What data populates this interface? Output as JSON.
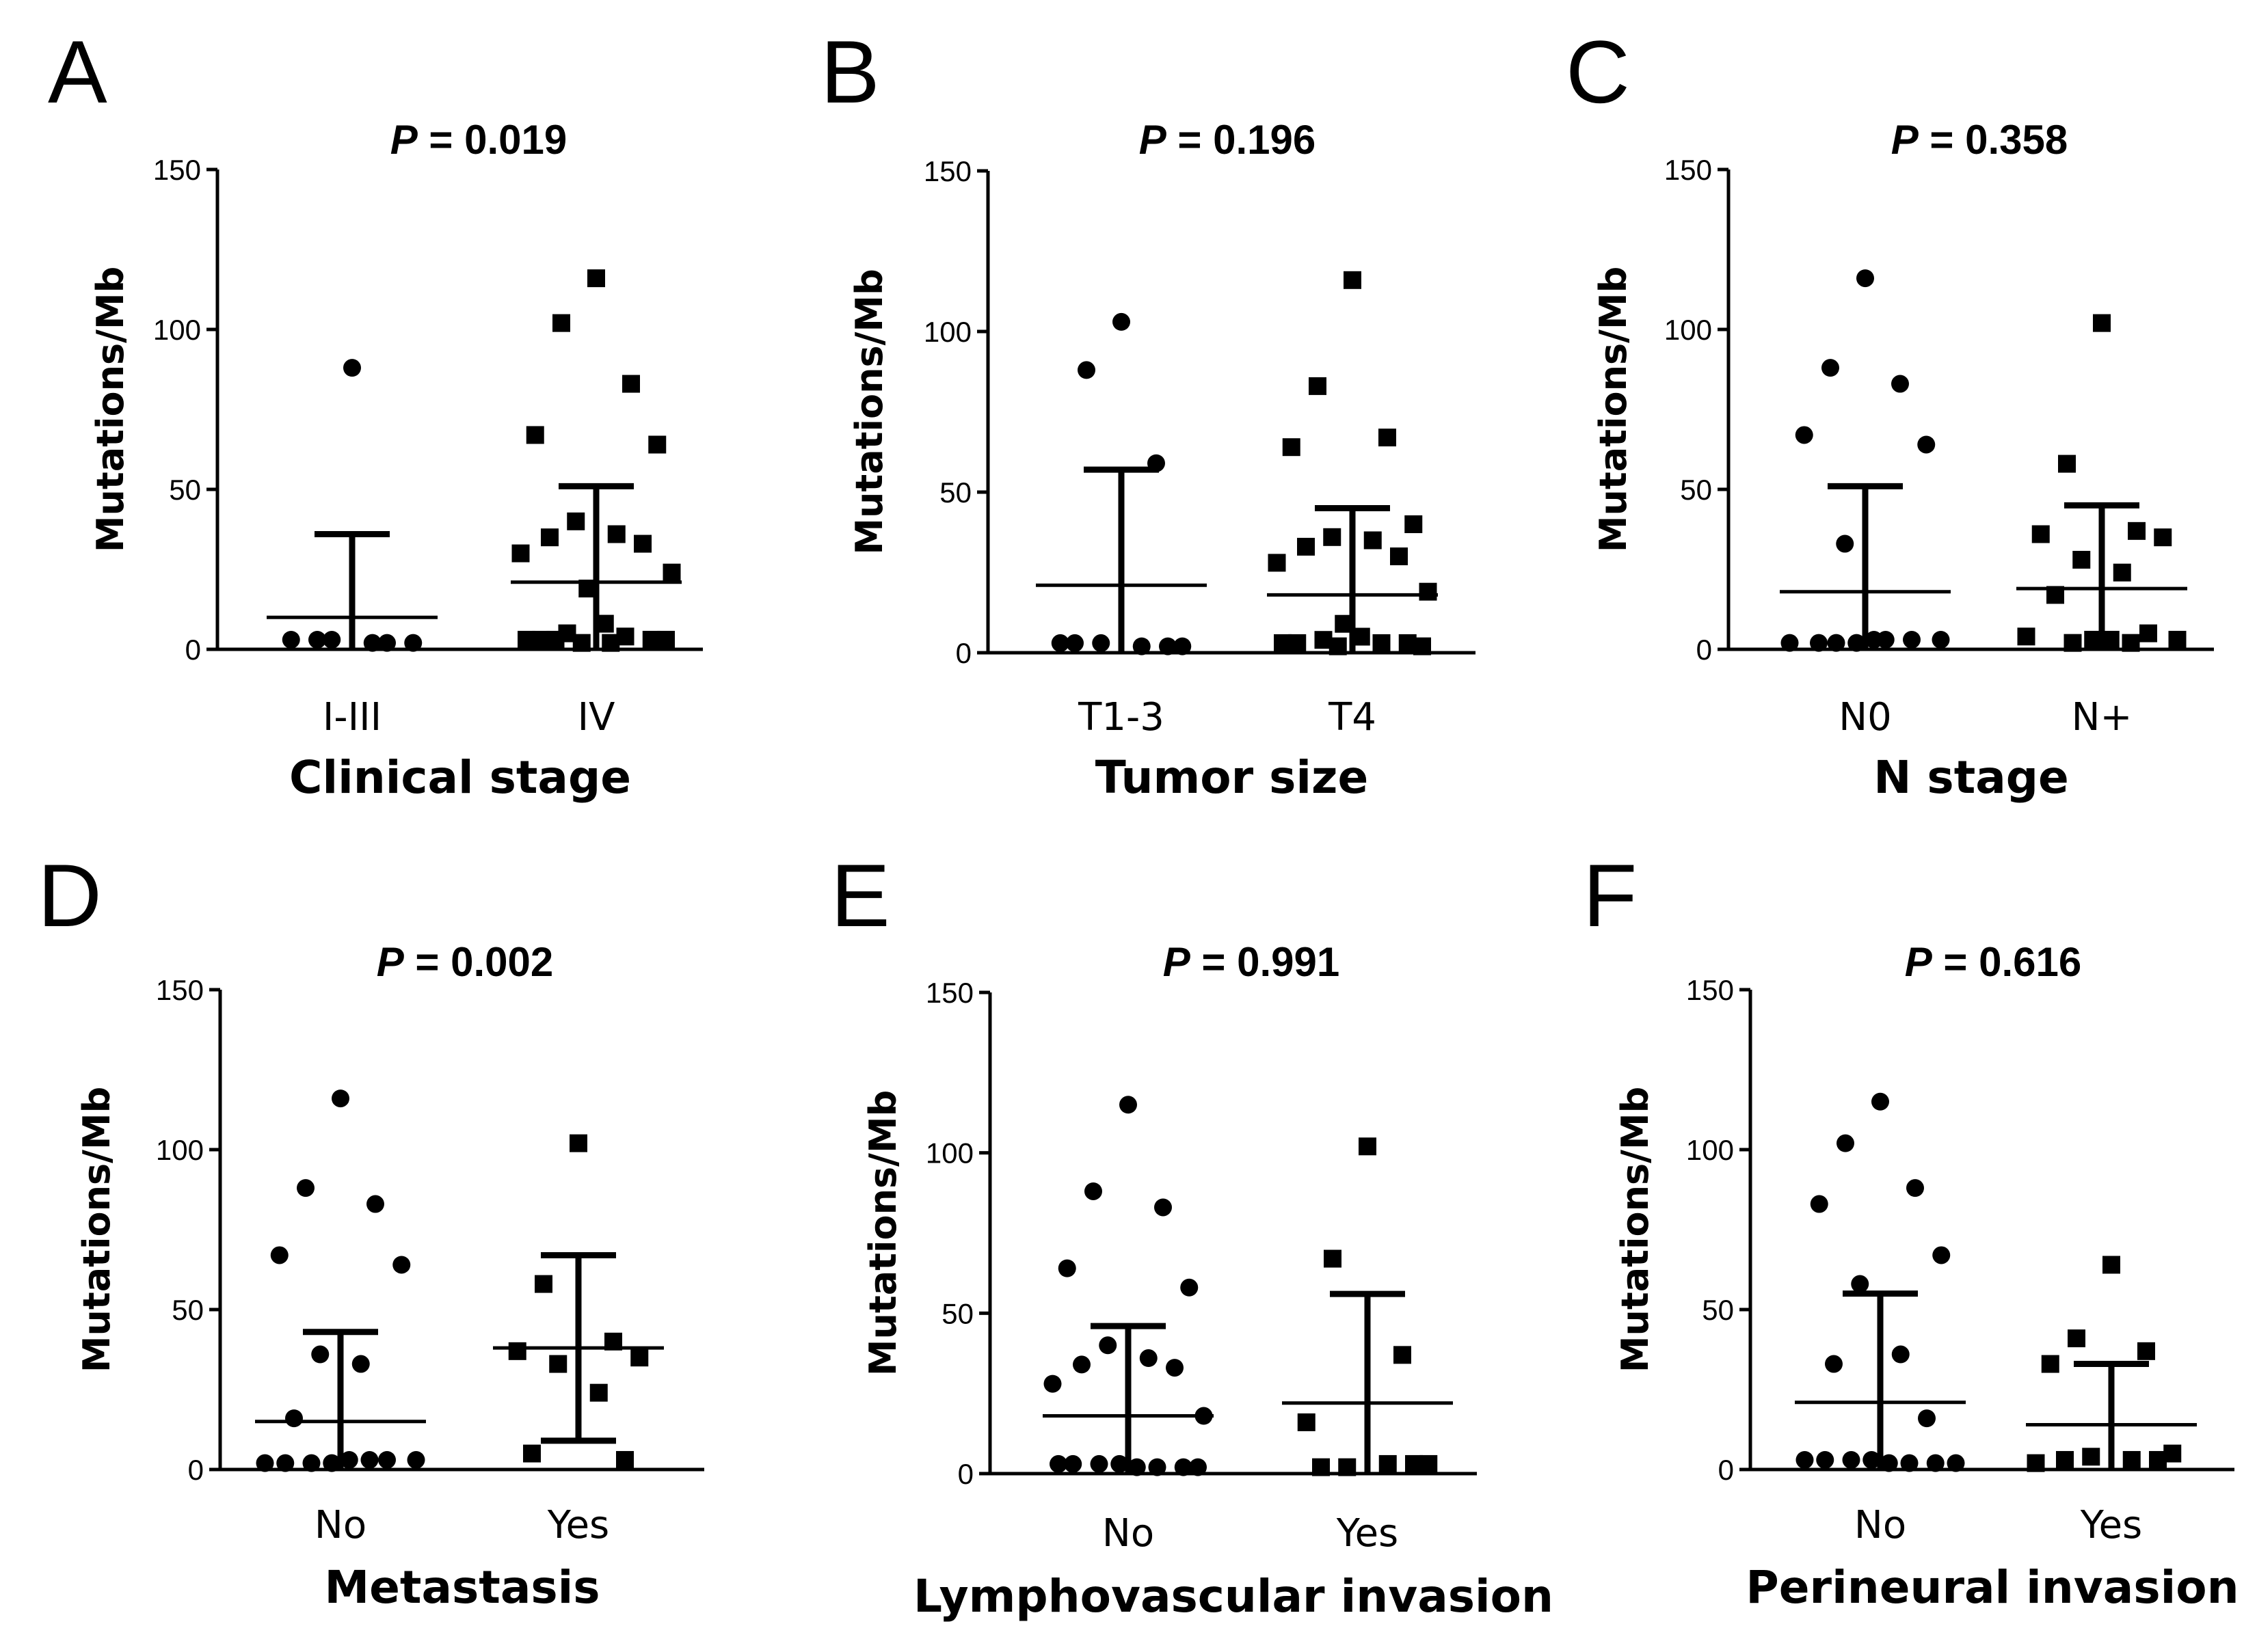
{
  "chart_data": [
    {
      "type": "scatter",
      "panel": "A",
      "title_p": "P",
      "title_rest": " = 0.019",
      "ylabel": "Mutations/Mb",
      "xlabel": "Clinical stage",
      "categories": [
        "I-III",
        "IV"
      ],
      "ylim": [
        0,
        150
      ],
      "yticks": [
        0,
        50,
        100,
        150
      ],
      "series": [
        {
          "name": "I-III",
          "marker": "circle",
          "mean": 10,
          "sd_upper": 36,
          "sd_lower": 0,
          "values": [
            88,
            3,
            2,
            3,
            2,
            3,
            2
          ]
        },
        {
          "name": "IV",
          "marker": "square",
          "mean": 21,
          "sd_upper": 51,
          "sd_lower": 0,
          "values": [
            116,
            102,
            83,
            67,
            64,
            40,
            36,
            35,
            33,
            30,
            24,
            19,
            8,
            5,
            4,
            3,
            3,
            3,
            3,
            2,
            2,
            3
          ]
        }
      ]
    },
    {
      "type": "scatter",
      "panel": "B",
      "title_p": "P",
      "title_rest": " = 0.196",
      "ylabel": "Mutations/Mb",
      "xlabel": "Tumor size",
      "categories": [
        "T1-3",
        "T4"
      ],
      "ylim": [
        0,
        150
      ],
      "yticks": [
        0,
        50,
        100,
        150
      ],
      "series": [
        {
          "name": "T1-3",
          "marker": "circle",
          "mean": 21,
          "sd_upper": 57,
          "sd_lower": 0,
          "values": [
            103,
            88,
            59,
            3,
            2,
            3,
            2,
            3,
            2
          ]
        },
        {
          "name": "T4",
          "marker": "square",
          "mean": 18,
          "sd_upper": 45,
          "sd_lower": 0,
          "values": [
            116,
            83,
            67,
            64,
            40,
            36,
            35,
            33,
            30,
            28,
            19,
            9,
            5,
            4,
            3,
            3,
            3,
            3,
            2,
            2
          ]
        }
      ]
    },
    {
      "type": "scatter",
      "panel": "C",
      "title_p": "P",
      "title_rest": " = 0.358",
      "ylabel": "Mutations/Mb",
      "xlabel": "N stage",
      "categories": [
        "N0",
        "N+"
      ],
      "ylim": [
        0,
        150
      ],
      "yticks": [
        0,
        50,
        100,
        150
      ],
      "series": [
        {
          "name": "N0",
          "marker": "circle",
          "mean": 18,
          "sd_upper": 51,
          "sd_lower": 0,
          "values": [
            116,
            88,
            83,
            67,
            64,
            33,
            3,
            2,
            3,
            2,
            3,
            2,
            3,
            2
          ]
        },
        {
          "name": "N+",
          "marker": "square",
          "mean": 19,
          "sd_upper": 45,
          "sd_lower": 0,
          "values": [
            102,
            58,
            37,
            36,
            35,
            28,
            24,
            17,
            5,
            4,
            3,
            3,
            3,
            2,
            2
          ]
        }
      ]
    },
    {
      "type": "scatter",
      "panel": "D",
      "title_p": "P",
      "title_rest": " = 0.002",
      "ylabel": "Mutations/Mb",
      "xlabel": "Metastasis",
      "categories": [
        "No",
        "Yes"
      ],
      "ylim": [
        0,
        150
      ],
      "yticks": [
        0,
        50,
        100,
        150
      ],
      "series": [
        {
          "name": "No",
          "marker": "circle",
          "mean": 15,
          "sd_upper": 43,
          "sd_lower": 0,
          "values": [
            116,
            88,
            83,
            67,
            64,
            36,
            33,
            16,
            3,
            2,
            3,
            2,
            3,
            2,
            3,
            2
          ]
        },
        {
          "name": "Yes",
          "marker": "square",
          "mean": 38,
          "sd_upper": 67,
          "sd_lower": 9,
          "values": [
            102,
            58,
            40,
            37,
            35,
            33,
            24,
            5,
            3
          ]
        }
      ]
    },
    {
      "type": "scatter",
      "panel": "E",
      "title_p": "P",
      "title_rest": " = 0.991",
      "ylabel": "Mutations/Mb",
      "xlabel": "Lymphovascular invasion",
      "categories": [
        "No",
        "Yes"
      ],
      "ylim": [
        0,
        150
      ],
      "yticks": [
        0,
        50,
        100,
        150
      ],
      "series": [
        {
          "name": "No",
          "marker": "circle",
          "mean": 18,
          "sd_upper": 46,
          "sd_lower": 0,
          "values": [
            115,
            88,
            83,
            64,
            58,
            40,
            36,
            34,
            33,
            28,
            18,
            3,
            2,
            3,
            2,
            3,
            2,
            3,
            2
          ]
        },
        {
          "name": "Yes",
          "marker": "square",
          "mean": 22,
          "sd_upper": 56,
          "sd_lower": 0,
          "values": [
            102,
            67,
            37,
            16,
            3,
            2,
            3,
            2,
            3
          ]
        }
      ]
    },
    {
      "type": "scatter",
      "panel": "F",
      "title_p": "P",
      "title_rest": " = 0.616",
      "ylabel": "Mutations/Mb",
      "xlabel": "Perineural invasion",
      "categories": [
        "No",
        "Yes"
      ],
      "ylim": [
        0,
        150
      ],
      "yticks": [
        0,
        50,
        100,
        150
      ],
      "series": [
        {
          "name": "No",
          "marker": "circle",
          "mean": 21,
          "sd_upper": 55,
          "sd_lower": 0,
          "values": [
            115,
            102,
            88,
            83,
            67,
            58,
            36,
            33,
            16,
            3,
            2,
            3,
            2,
            3,
            2,
            3,
            2
          ]
        },
        {
          "name": "Yes",
          "marker": "square",
          "mean": 14,
          "sd_upper": 33,
          "sd_lower": 0,
          "values": [
            64,
            41,
            37,
            33,
            5,
            4,
            3,
            3,
            3,
            2
          ]
        }
      ]
    }
  ]
}
